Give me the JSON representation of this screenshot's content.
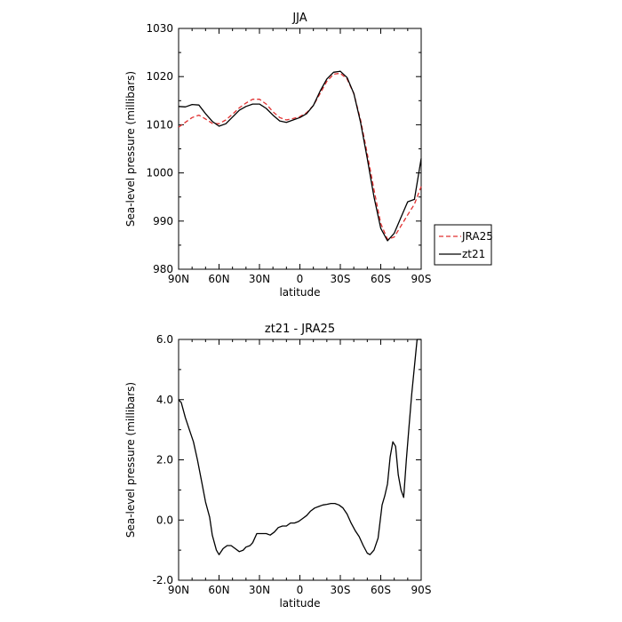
{
  "chart_data": [
    {
      "type": "line",
      "title": "JJA",
      "xlabel": "latitude",
      "ylabel": "Sea-level pressure (millibars)",
      "xlim": [
        90,
        -90
      ],
      "ylim": [
        980,
        1030
      ],
      "x_ticks": [
        90,
        60,
        30,
        0,
        -30,
        -60,
        -90
      ],
      "x_tick_labels": [
        "90N",
        "60N",
        "30N",
        "0",
        "30S",
        "60S",
        "90S"
      ],
      "y_ticks": [
        980,
        990,
        1000,
        1010,
        1020,
        1030
      ],
      "y_tick_labels": [
        "980",
        "990",
        "1000",
        "1010",
        "1020",
        "1030"
      ],
      "legend": "right-of-plot",
      "series": [
        {
          "name": "JRA25",
          "color": "#e03030",
          "dash": "dashed",
          "points": [
            [
              90,
              1009.5
            ],
            [
              85,
              1010.5
            ],
            [
              80,
              1011.5
            ],
            [
              75,
              1012
            ],
            [
              70,
              1011.2
            ],
            [
              65,
              1010.3
            ],
            [
              60,
              1010.2
            ],
            [
              55,
              1011
            ],
            [
              50,
              1012.2
            ],
            [
              45,
              1013.5
            ],
            [
              40,
              1014.5
            ],
            [
              35,
              1015.3
            ],
            [
              30,
              1015.3
            ],
            [
              25,
              1014.3
            ],
            [
              20,
              1012.7
            ],
            [
              15,
              1011.5
            ],
            [
              10,
              1011
            ],
            [
              5,
              1011.3
            ],
            [
              0,
              1011.7
            ],
            [
              -5,
              1012.5
            ],
            [
              -10,
              1014
            ],
            [
              -15,
              1016.5
            ],
            [
              -20,
              1019
            ],
            [
              -25,
              1020.5
            ],
            [
              -30,
              1020.7
            ],
            [
              -35,
              1019.5
            ],
            [
              -40,
              1016.5
            ],
            [
              -45,
              1011
            ],
            [
              -50,
              1004
            ],
            [
              -55,
              996.5
            ],
            [
              -60,
              989.5
            ],
            [
              -65,
              986.2
            ],
            [
              -70,
              986.7
            ],
            [
              -75,
              989
            ],
            [
              -80,
              991.3
            ],
            [
              -85,
              993.5
            ],
            [
              -90,
              997.2
            ]
          ]
        },
        {
          "name": "zt21",
          "color": "#000000",
          "dash": "solid",
          "points": [
            [
              90,
              1013.8
            ],
            [
              85,
              1013.7
            ],
            [
              80,
              1014.2
            ],
            [
              75,
              1014.1
            ],
            [
              70,
              1012.3
            ],
            [
              65,
              1010.7
            ],
            [
              60,
              1009.7
            ],
            [
              55,
              1010.2
            ],
            [
              50,
              1011.6
            ],
            [
              45,
              1013
            ],
            [
              40,
              1013.8
            ],
            [
              35,
              1014.3
            ],
            [
              30,
              1014.3
            ],
            [
              25,
              1013.4
            ],
            [
              20,
              1012
            ],
            [
              15,
              1010.8
            ],
            [
              10,
              1010.5
            ],
            [
              5,
              1011
            ],
            [
              0,
              1011.5
            ],
            [
              -5,
              1012.3
            ],
            [
              -10,
              1014
            ],
            [
              -15,
              1017
            ],
            [
              -20,
              1019.5
            ],
            [
              -25,
              1020.9
            ],
            [
              -30,
              1021.1
            ],
            [
              -35,
              1019.8
            ],
            [
              -40,
              1016.5
            ],
            [
              -45,
              1010.5
            ],
            [
              -50,
              1003
            ],
            [
              -55,
              995
            ],
            [
              -60,
              988.5
            ],
            [
              -65,
              985.9
            ],
            [
              -70,
              987.5
            ],
            [
              -75,
              990.8
            ],
            [
              -80,
              994
            ],
            [
              -85,
              994.5
            ],
            [
              -90,
              1003
            ]
          ]
        }
      ]
    },
    {
      "type": "line",
      "title": "zt21 - JRA25",
      "xlabel": "latitude",
      "ylabel": "Sea-level pressure (millibars)",
      "xlim": [
        90,
        -90
      ],
      "ylim": [
        -2.0,
        6.0
      ],
      "x_ticks": [
        90,
        60,
        30,
        0,
        -30,
        -60,
        -90
      ],
      "x_tick_labels": [
        "90N",
        "60N",
        "30N",
        "0",
        "30S",
        "60S",
        "90S"
      ],
      "y_ticks": [
        -2,
        0,
        2,
        4,
        6
      ],
      "y_tick_labels": [
        "-2.0",
        "0.0",
        "2.0",
        "4.0",
        "6.0"
      ],
      "series": [
        {
          "color": "#000000",
          "dash": "solid",
          "points": [
            [
              90,
              4
            ],
            [
              88,
              3.9
            ],
            [
              85,
              3.4
            ],
            [
              82,
              3
            ],
            [
              79,
              2.6
            ],
            [
              76,
              2
            ],
            [
              73,
              1.3
            ],
            [
              70,
              0.6
            ],
            [
              67,
              0.1
            ],
            [
              65,
              -0.5
            ],
            [
              62,
              -1
            ],
            [
              60,
              -1.15
            ],
            [
              57,
              -0.95
            ],
            [
              54,
              -0.85
            ],
            [
              51,
              -0.85
            ],
            [
              48,
              -0.95
            ],
            [
              45,
              -1.05
            ],
            [
              42,
              -1
            ],
            [
              40,
              -0.9
            ],
            [
              37,
              -0.85
            ],
            [
              35,
              -0.75
            ],
            [
              32,
              -0.45
            ],
            [
              29,
              -0.45
            ],
            [
              25,
              -0.45
            ],
            [
              22,
              -0.5
            ],
            [
              19,
              -0.4
            ],
            [
              16,
              -0.25
            ],
            [
              13,
              -0.2
            ],
            [
              10,
              -0.2
            ],
            [
              7,
              -0.1
            ],
            [
              4,
              -0.1
            ],
            [
              1,
              -0.05
            ],
            [
              -2,
              0.05
            ],
            [
              -5,
              0.15
            ],
            [
              -8,
              0.3
            ],
            [
              -11,
              0.4
            ],
            [
              -14,
              0.45
            ],
            [
              -17,
              0.5
            ],
            [
              -20,
              0.52
            ],
            [
              -23,
              0.55
            ],
            [
              -26,
              0.55
            ],
            [
              -29,
              0.5
            ],
            [
              -32,
              0.4
            ],
            [
              -35,
              0.2
            ],
            [
              -38,
              -0.1
            ],
            [
              -41,
              -0.35
            ],
            [
              -44,
              -0.55
            ],
            [
              -47,
              -0.85
            ],
            [
              -50,
              -1.1
            ],
            [
              -52,
              -1.15
            ],
            [
              -55,
              -1
            ],
            [
              -58,
              -0.6
            ],
            [
              -61,
              0.5
            ],
            [
              -63,
              0.8
            ],
            [
              -65,
              1.2
            ],
            [
              -67,
              2.1
            ],
            [
              -69,
              2.6
            ],
            [
              -71,
              2.45
            ],
            [
              -73,
              1.5
            ],
            [
              -75,
              1
            ],
            [
              -77,
              0.75
            ],
            [
              -79,
              2
            ],
            [
              -81,
              3.1
            ],
            [
              -83,
              4.2
            ],
            [
              -85,
              5.1
            ],
            [
              -87,
              6
            ],
            [
              -90,
              6
            ]
          ]
        }
      ]
    }
  ]
}
